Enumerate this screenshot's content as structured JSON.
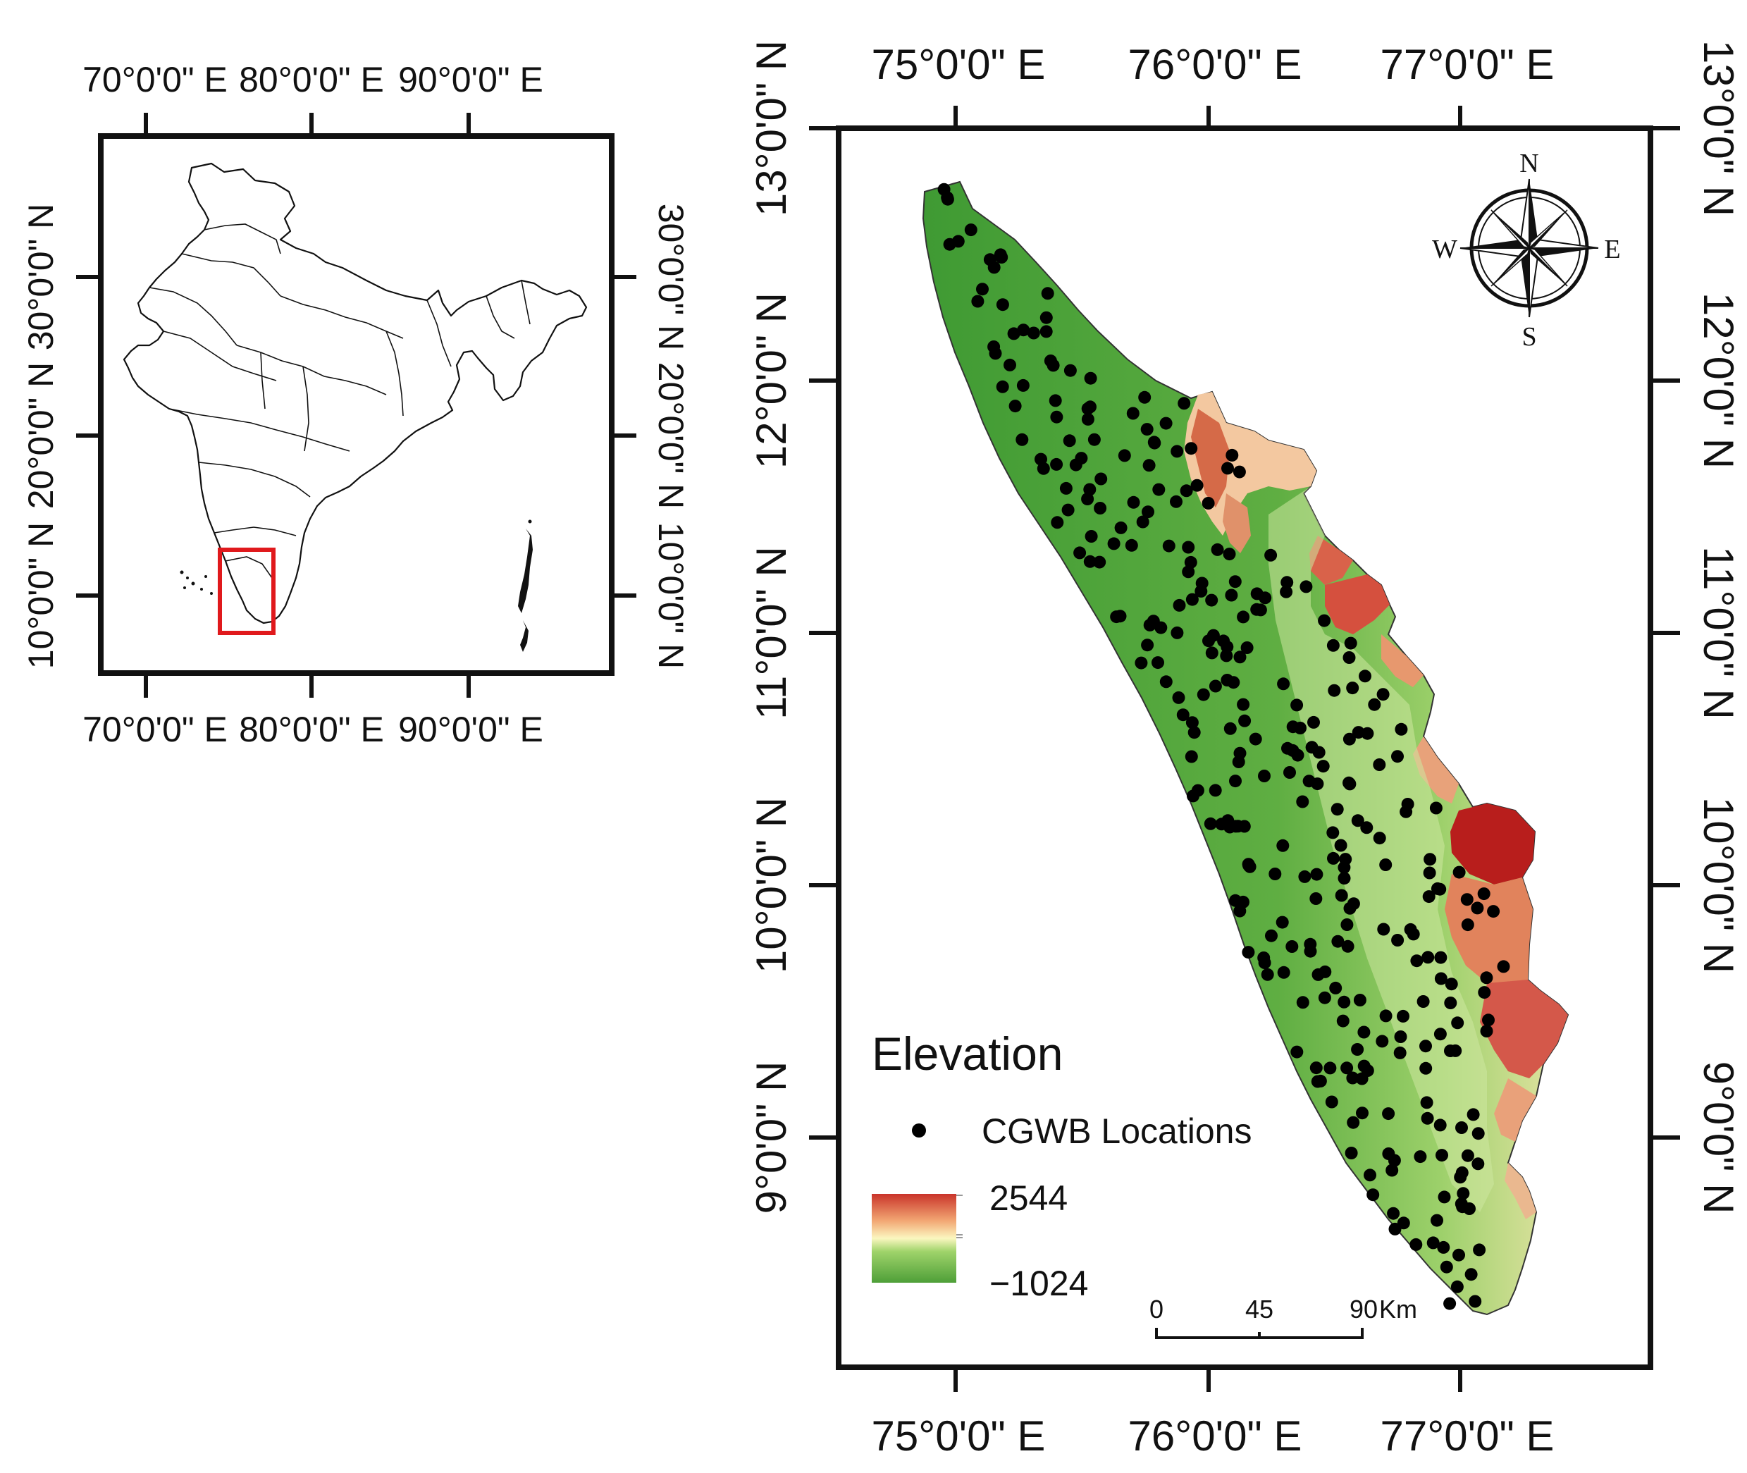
{
  "inset_map": {
    "top_labels": [
      "70°0'0\" E",
      "80°0'0\" E",
      "90°0'0\" E"
    ],
    "bottom_labels": [
      "70°0'0\" E",
      "80°0'0\" E",
      "90°0'0\" E"
    ],
    "left_labels": [
      "30°0'0\" N",
      "20°0'0\" N",
      "10°0'0\" N"
    ],
    "right_labels": [
      "30°0'0\" N",
      "20°0'0\" N",
      "10°0'0\" N"
    ],
    "highlight_color": "#e0191c"
  },
  "main_map": {
    "top_labels": [
      "75°0'0\" E",
      "76°0'0\" E",
      "77°0'0\" E"
    ],
    "bottom_labels": [
      "75°0'0\" E",
      "76°0'0\" E",
      "77°0'0\" E"
    ],
    "left_labels": [
      "13°0'0\" N",
      "12°0'0\" N",
      "11°0'0\" N",
      "10°0'0\" N",
      "9°0'0\" N"
    ],
    "right_labels": [
      "13°0'0\" N",
      "12°0'0\" N",
      "11°0'0\" N",
      "10°0'0\" N",
      "9°0'0\" N"
    ]
  },
  "compass": {
    "n": "N",
    "s": "S",
    "e": "E",
    "w": "W"
  },
  "legend": {
    "title": "Elevation",
    "points_label": "CGWB Locations",
    "max_label": "2544",
    "min_label": "−1024",
    "colors": {
      "high": "#c0342a",
      "mid": "#fbf7c0",
      "low": "#4aa43b"
    }
  },
  "scale_bar": {
    "label_0": "0",
    "label_mid": "45",
    "label_end": "90",
    "unit": "Km"
  }
}
